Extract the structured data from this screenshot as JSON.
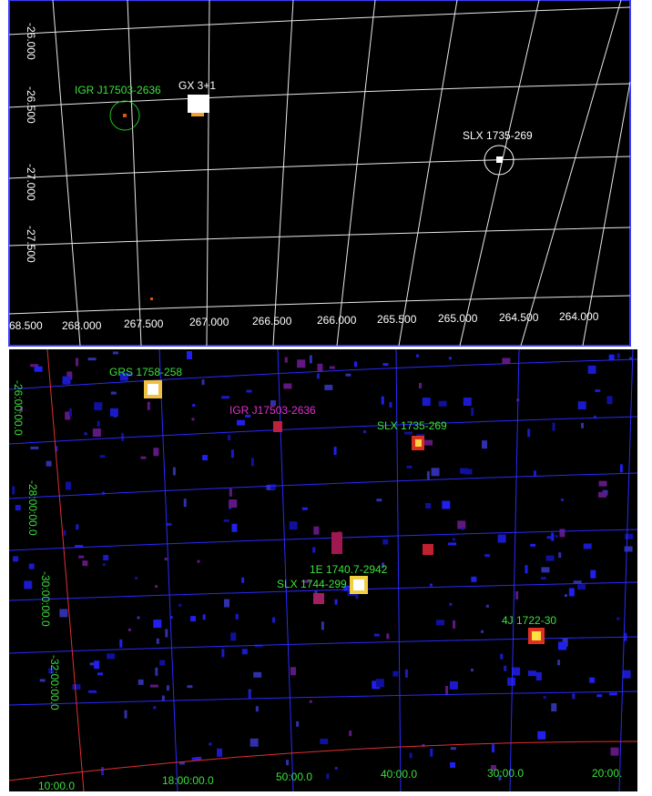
{
  "top_panel": {
    "y_labels": [
      "-26.000",
      "-26.500",
      "-27.000",
      "-27.500"
    ],
    "x_labels": [
      "68.500",
      "268.000",
      "267.500",
      "267.000",
      "266.500",
      "266.000",
      "265.500",
      "265.000",
      "264.500",
      "264.000"
    ],
    "sources": [
      {
        "label": "IGR J17503-2636"
      },
      {
        "label": "GX 3+1"
      },
      {
        "label": "SLX 1735-269"
      }
    ]
  },
  "bottom_panel": {
    "y_labels": [
      "-26:00:00.0",
      "-28:00:00.0",
      "-30:00:00.0",
      "-32:00:00.0"
    ],
    "x_labels": [
      "10:00.0",
      "18:00:00.0",
      "50:00.0",
      "40:00.0",
      "30:00.0",
      "20:00."
    ],
    "sources": [
      {
        "label": "GRS 1758-258"
      },
      {
        "label": "IGR J17503-2636"
      },
      {
        "label": "SLX 1735-269"
      },
      {
        "label": "1E 1740.7-2942"
      },
      {
        "label": "SLX 1744-299"
      },
      {
        "label": "4J 1722-30"
      }
    ]
  }
}
